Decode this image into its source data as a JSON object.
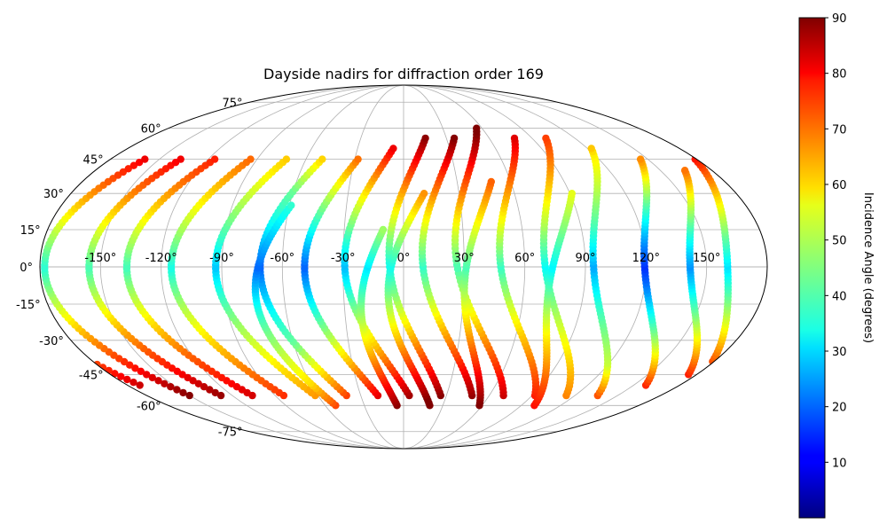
{
  "chart_data": {
    "type": "scatter",
    "projection": "mollweide",
    "title": "Dayside nadirs for diffraction order 169",
    "x_ticks": [
      "-150°",
      "-120°",
      "-90°",
      "-60°",
      "-30°",
      "0°",
      "30°",
      "60°",
      "90°",
      "120°",
      "150°"
    ],
    "x_tick_values": [
      -150,
      -120,
      -90,
      -60,
      -30,
      0,
      30,
      60,
      90,
      120,
      150
    ],
    "y_ticks": [
      "75°",
      "60°",
      "45°",
      "30°",
      "15°",
      "0°",
      "-15°",
      "-30°",
      "-45°",
      "-60°",
      "-75°"
    ],
    "y_tick_values": [
      75,
      60,
      45,
      30,
      15,
      0,
      -15,
      -30,
      -45,
      -60,
      -75
    ],
    "grid": true,
    "colorbar": {
      "label": "Incidence Angle (degrees)",
      "colormap": "jet",
      "range": [
        0,
        90
      ],
      "ticks": [
        "10",
        "20",
        "30",
        "40",
        "50",
        "60",
        "70",
        "80",
        "90"
      ],
      "tick_values": [
        10,
        20,
        30,
        40,
        50,
        60,
        70,
        80,
        90
      ]
    },
    "tracks": [
      {
        "lon_start": 70,
        "lat_start": -55,
        "lat_end": 60,
        "lon_shift": -40
      },
      {
        "lon_start": 48,
        "lat_start": -55,
        "lat_end": 55,
        "lon_shift": -35
      },
      {
        "lon_start": 26,
        "lat_start": -55,
        "lat_end": 55,
        "lon_shift": -30
      },
      {
        "lon_start": 4,
        "lat_start": -55,
        "lat_end": 50,
        "lon_shift": -30
      },
      {
        "lon_start": -18,
        "lat_start": -55,
        "lat_end": 45,
        "lon_shift": -28
      },
      {
        "lon_start": -40,
        "lat_start": -55,
        "lat_end": 45,
        "lon_shift": -28
      },
      {
        "lon_start": -62,
        "lat_start": -55,
        "lat_end": 45,
        "lon_shift": -28
      },
      {
        "lon_start": -84,
        "lat_start": -55,
        "lat_end": 45,
        "lon_shift": -28
      },
      {
        "lon_start": -106,
        "lat_start": -55,
        "lat_end": 45,
        "lon_shift": -28
      },
      {
        "lon_start": -128,
        "lat_start": -55,
        "lat_end": 45,
        "lon_shift": -25
      },
      {
        "lon_start": -150,
        "lat_start": -55,
        "lat_end": 45,
        "lon_shift": -25
      },
      {
        "lon_start": 92,
        "lat_start": -55,
        "lat_end": 55,
        "lon_shift": -40
      },
      {
        "lon_start": 114,
        "lat_start": -55,
        "lat_end": 55,
        "lon_shift": -40
      },
      {
        "lon_start": 136,
        "lat_start": -55,
        "lat_end": 50,
        "lon_shift": -38
      },
      {
        "lon_start": 158,
        "lat_start": -50,
        "lat_end": 45,
        "lon_shift": -35
      },
      {
        "lon_start": -172,
        "lat_start": -50,
        "lat_end": 45,
        "lon_shift": -25
      },
      {
        "lon_start": 175,
        "lat_start": -45,
        "lat_end": 40,
        "lon_shift": -30
      },
      {
        "lon_start": 20,
        "lat_start": -60,
        "lat_end": 30,
        "lon_shift": -25
      },
      {
        "lon_start": -5,
        "lat_start": -60,
        "lat_end": 15,
        "lon_shift": -15
      },
      {
        "lon_start": -52,
        "lat_start": -60,
        "lat_end": 25,
        "lon_shift": -20
      },
      {
        "lon_start": 58,
        "lat_start": -60,
        "lat_end": 35,
        "lon_shift": -25
      },
      {
        "lon_start": 100,
        "lat_start": -60,
        "lat_end": 30,
        "lon_shift": -25
      }
    ]
  }
}
